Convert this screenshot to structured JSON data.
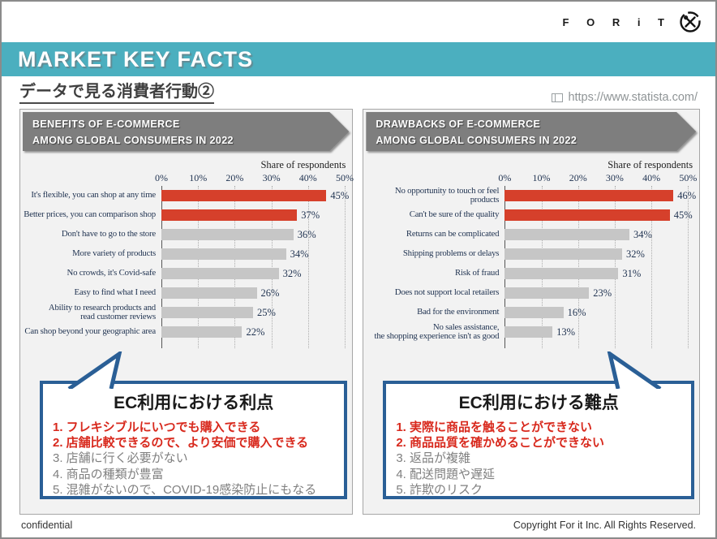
{
  "logo": {
    "text": "F O R i T"
  },
  "banner": {
    "title": "MARKET KEY FACTS"
  },
  "page": {
    "title": "データで見る消費者行動②",
    "source_url": "https://www.statista.com/"
  },
  "colors": {
    "accent_teal": "#4BAFBF",
    "bar_red": "#D6402B",
    "bar_gray": "#C6C6C6",
    "callout_border_blue": "#2A5F96",
    "emphasis_red": "#D8291D",
    "header_gray": "#7E7E7E"
  },
  "chart_data": [
    {
      "type": "bar",
      "orientation": "horizontal",
      "title": "BENEFITS OF E-COMMERCE AMONG GLOBAL CONSUMERS IN 2022",
      "axis_note": "Share of respondents",
      "x_ticks": [
        "0%",
        "10%",
        "20%",
        "30%",
        "40%",
        "50%"
      ],
      "xlim": [
        0,
        50
      ],
      "categories": [
        "It's flexible, you can shop at any time",
        "Better prices, you can comparison shop",
        "Don't have to go to the store",
        "More variety of products",
        "No crowds, it's Covid-safe",
        "Easy to find what I need",
        "Ability to research products and\nread customer reviews",
        "Can shop beyond your geographic area"
      ],
      "values": [
        45,
        37,
        36,
        34,
        32,
        26,
        25,
        22
      ],
      "value_labels": [
        "45%",
        "37%",
        "36%",
        "34%",
        "32%",
        "26%",
        "25%",
        "22%"
      ],
      "highlight_count": 2,
      "bar_color_highlight": "#D6402B",
      "bar_color_default": "#C6C6C6",
      "grid": "dotted-vertical",
      "legend": "none"
    },
    {
      "type": "bar",
      "orientation": "horizontal",
      "title": "DRAWBACKS OF E-COMMERCE AMONG GLOBAL CONSUMERS IN 2022",
      "axis_note": "Share of respondents",
      "x_ticks": [
        "0%",
        "10%",
        "20%",
        "30%",
        "40%",
        "50%"
      ],
      "xlim": [
        0,
        50
      ],
      "categories": [
        "No opportunity to touch or feel products",
        "Can't be sure of the quality",
        "Returns can be complicated",
        "Shipping problems or delays",
        "Risk of fraud",
        "Does not support local retailers",
        "Bad for the environment",
        "No sales assistance,\nthe shopping experience isn't as good"
      ],
      "values": [
        46,
        45,
        34,
        32,
        31,
        23,
        16,
        13
      ],
      "value_labels": [
        "46%",
        "45%",
        "34%",
        "32%",
        "31%",
        "23%",
        "16%",
        "13%"
      ],
      "highlight_count": 2,
      "bar_color_highlight": "#D6402B",
      "bar_color_default": "#C6C6C6",
      "grid": "dotted-vertical",
      "legend": "none"
    }
  ],
  "panels": [
    {
      "header": [
        "BENEFITS OF E-COMMERCE",
        "AMONG GLOBAL CONSUMERS IN 2022"
      ],
      "callout": {
        "title": "EC利用における利点",
        "items": [
          {
            "text": "1. フレキシブルにいつでも購入できる",
            "emphasis": true
          },
          {
            "text": "2. 店舗比較できるので、より安価で購入できる",
            "emphasis": true
          },
          {
            "text": "3. 店舗に行く必要がない",
            "emphasis": false
          },
          {
            "text": "4. 商品の種類が豊富",
            "emphasis": false
          },
          {
            "text": "5. 混雑がないので、COVID-19感染防止にもなる",
            "emphasis": false
          }
        ]
      }
    },
    {
      "header": [
        "DRAWBACKS OF E-COMMERCE",
        "AMONG GLOBAL CONSUMERS IN 2022"
      ],
      "callout": {
        "title": "EC利用における難点",
        "items": [
          {
            "text": "1. 実際に商品を触ることができない",
            "emphasis": true
          },
          {
            "text": "2. 商品品質を確かめることができない",
            "emphasis": true
          },
          {
            "text": "3. 返品が複雑",
            "emphasis": false
          },
          {
            "text": "4. 配送問題や遅延",
            "emphasis": false
          },
          {
            "text": "5. 詐欺のリスク",
            "emphasis": false
          }
        ]
      }
    }
  ],
  "footer": {
    "left": "confidential",
    "right": "Copyright For it Inc. All Rights Reserved."
  }
}
